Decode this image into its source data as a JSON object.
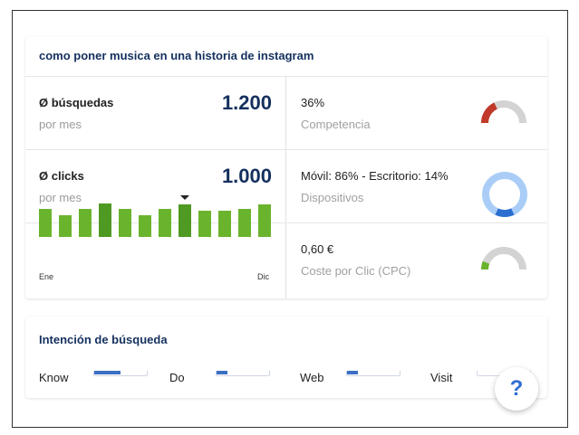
{
  "title": "como poner musica en una historia de instagram",
  "metrics": {
    "searches": {
      "label": "Ø búsquedas",
      "sub": "por mes",
      "value": "1.200"
    },
    "clicks": {
      "label": "Ø clicks",
      "sub": "por mes",
      "value": "1.000"
    }
  },
  "right": {
    "competition": {
      "value": "36%",
      "label": "Competencia",
      "fraction": 0.36
    },
    "devices": {
      "value": "Móvil: 86% - Escritorio: 14%",
      "label": "Dispositivos",
      "mobile": 0.86,
      "desktop": 0.14
    },
    "cpc": {
      "value": "0,60 €",
      "label": "Coste por Clic (CPC)",
      "fraction": 0.12
    }
  },
  "trend": {
    "start_label": "Ene",
    "end_label": "Dic",
    "values": [
      0.72,
      0.55,
      0.72,
      0.88,
      0.72,
      0.55,
      0.72,
      0.86,
      0.68,
      0.68,
      0.72,
      0.84
    ],
    "highlight": [
      3,
      7
    ],
    "marker_index": 7
  },
  "intent": {
    "title": "Intención de búsqueda",
    "items": [
      {
        "label": "Know",
        "fraction": 0.5
      },
      {
        "label": "Do",
        "fraction": 0.2
      },
      {
        "label": "Web",
        "fraction": 0.2
      },
      {
        "label": "Visit",
        "fraction": 0.0
      }
    ]
  },
  "help_label": "?",
  "colors": {
    "title": "#14305e",
    "bar": "#6ab42d",
    "gauge_bg": "#d3d3d3",
    "competition": "#c0392b",
    "mobile": "#a9cdf7",
    "desktop": "#2a6fd0",
    "cpc": "#6ab42d",
    "accent": "#2f6dd0"
  }
}
